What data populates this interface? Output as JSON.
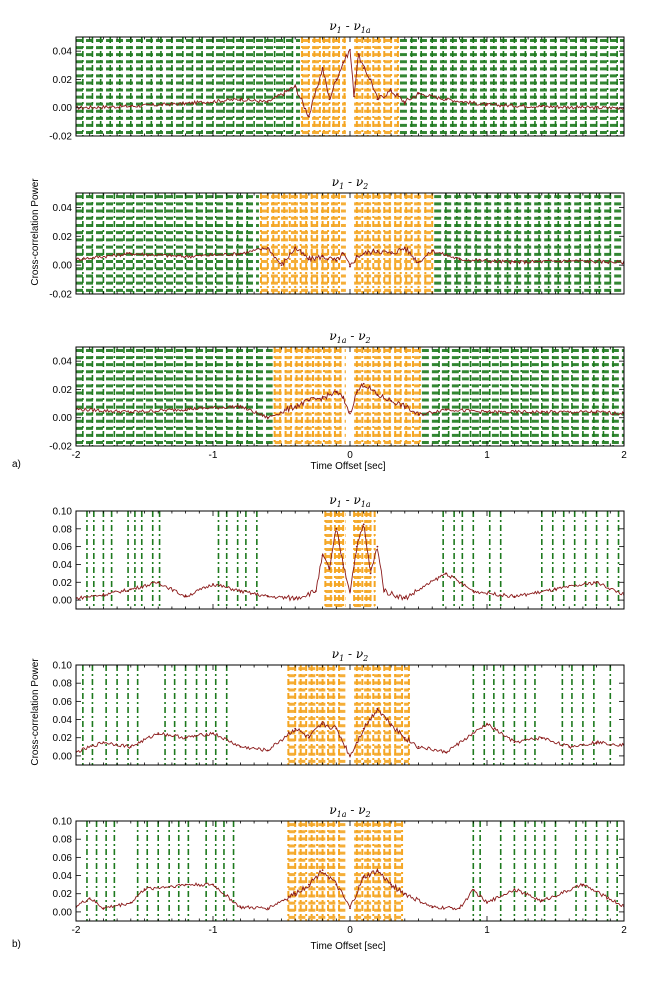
{
  "figure": {
    "x_axis_label": "Time Offset [sec]",
    "y_axis_label": "Cross-correlation Power",
    "panel_tags": [
      "a)",
      "b)"
    ],
    "colors": {
      "trace": "#8b1a1a",
      "orange_band": "#f5a623",
      "green_band": "#1e7a1e",
      "axes": "#000000"
    }
  },
  "chart_data": [
    {
      "type": "line",
      "group": "a",
      "title": "ν1 - ν1a",
      "title_parts": [
        "ν",
        "1",
        " - ν",
        "1a"
      ],
      "xlim": [
        -2,
        2
      ],
      "ylim": [
        -0.02,
        0.05
      ],
      "xticks": [
        -2,
        -1,
        0,
        1,
        2
      ],
      "yticks": [
        -0.02,
        0.0,
        0.02,
        0.04
      ],
      "ytick_labels": [
        "-0.02",
        "0.00",
        "0.02",
        "0.04"
      ],
      "xtick_labels": [],
      "x": [
        -2.0,
        -1.6,
        -1.2,
        -0.8,
        -0.6,
        -0.4,
        -0.3,
        -0.2,
        -0.15,
        -0.1,
        -0.05,
        0.0,
        0.03,
        0.06,
        0.1,
        0.15,
        0.2,
        0.3,
        0.4,
        0.5,
        0.7,
        1.0,
        1.4,
        1.8,
        2.0
      ],
      "values": [
        0.0,
        0.001,
        0.003,
        0.006,
        0.004,
        0.015,
        -0.006,
        0.028,
        0.006,
        0.02,
        0.032,
        0.041,
        0.008,
        0.038,
        0.028,
        0.02,
        0.006,
        0.012,
        0.004,
        0.01,
        0.006,
        0.002,
        0.001,
        0.0,
        0.0
      ],
      "orange_bands": [
        -0.35,
        -0.3,
        -0.26,
        -0.22,
        -0.19,
        -0.15,
        -0.12,
        -0.08,
        -0.04,
        0.05,
        0.09,
        0.13,
        0.17,
        0.21,
        0.25,
        0.3,
        0.35
      ],
      "green_bands": [
        -1.95,
        -1.88,
        -1.82,
        -1.75,
        -1.68,
        -1.6,
        -1.52,
        -1.45,
        -1.38,
        -1.3,
        -1.22,
        -1.15,
        -1.08,
        -1.0,
        -0.92,
        -0.85,
        -0.78,
        -0.7,
        -0.62,
        -0.55,
        -0.48,
        -0.42,
        0.45,
        0.52,
        0.6,
        0.68,
        0.75,
        0.82,
        0.9,
        0.98,
        1.05,
        1.12,
        1.2,
        1.28,
        1.35,
        1.42,
        1.5,
        1.58,
        1.65,
        1.72,
        1.8,
        1.88,
        1.95
      ],
      "orange_hbands": true,
      "green_hbands": true
    },
    {
      "type": "line",
      "group": "a",
      "title": "ν1 - ν2",
      "title_parts": [
        "ν",
        "1",
        " - ν",
        "2"
      ],
      "xlim": [
        -2,
        2
      ],
      "ylim": [
        -0.02,
        0.05
      ],
      "xticks": [
        -2,
        -1,
        0,
        1,
        2
      ],
      "yticks": [
        -0.02,
        0.0,
        0.02,
        0.04
      ],
      "ytick_labels": [
        "-0.02",
        "0.00",
        "0.02",
        "0.04"
      ],
      "xtick_labels": [],
      "x": [
        -2.0,
        -1.6,
        -1.2,
        -0.8,
        -0.6,
        -0.5,
        -0.4,
        -0.3,
        -0.2,
        -0.1,
        -0.05,
        0.0,
        0.05,
        0.1,
        0.2,
        0.3,
        0.4,
        0.5,
        0.6,
        0.8,
        1.2,
        1.6,
        2.0
      ],
      "values": [
        0.004,
        0.008,
        0.006,
        0.008,
        0.012,
        0.0,
        0.012,
        0.004,
        0.006,
        0.003,
        0.008,
        -0.001,
        0.006,
        0.008,
        0.01,
        0.008,
        0.012,
        0.002,
        0.01,
        0.004,
        0.002,
        0.003,
        0.002
      ],
      "orange_bands": [
        -0.65,
        -0.6,
        -0.56,
        -0.52,
        -0.48,
        -0.44,
        -0.4,
        -0.36,
        -0.32,
        -0.28,
        -0.24,
        -0.2,
        -0.16,
        -0.12,
        -0.08,
        0.05,
        0.09,
        0.13,
        0.17,
        0.21,
        0.25,
        0.29,
        0.33,
        0.37,
        0.41,
        0.45,
        0.5,
        0.55,
        0.6
      ],
      "green_bands": [
        -1.95,
        -1.88,
        -1.8,
        -1.72,
        -1.65,
        -1.58,
        -1.5,
        -1.42,
        -1.35,
        -1.28,
        -1.2,
        -1.12,
        -1.05,
        -0.98,
        -0.9,
        -0.82,
        -0.75,
        0.7,
        0.78,
        0.85,
        0.92,
        1.0,
        1.08,
        1.15,
        1.22,
        1.3,
        1.38,
        1.45,
        1.52,
        1.6,
        1.68,
        1.75,
        1.82,
        1.9
      ],
      "orange_hbands": true,
      "green_hbands": true
    },
    {
      "type": "line",
      "group": "a",
      "title": "ν1a - ν2",
      "title_parts": [
        "ν",
        "1a",
        " - ν",
        "2"
      ],
      "xlim": [
        -2,
        2
      ],
      "ylim": [
        -0.02,
        0.05
      ],
      "xticks": [
        -2,
        -1,
        0,
        1,
        2
      ],
      "yticks": [
        -0.02,
        0.0,
        0.02,
        0.04
      ],
      "ytick_labels": [
        "-0.02",
        "0.00",
        "0.02",
        "0.04"
      ],
      "xtick_labels": [
        "-2",
        "-1",
        "0",
        "1",
        "2"
      ],
      "x": [
        -2.0,
        -1.6,
        -1.2,
        -0.8,
        -0.6,
        -0.4,
        -0.3,
        -0.2,
        -0.1,
        -0.05,
        0.0,
        0.05,
        0.1,
        0.2,
        0.3,
        0.4,
        0.5,
        0.7,
        1.0,
        1.4,
        1.8,
        2.0
      ],
      "values": [
        0.006,
        0.004,
        0.006,
        0.008,
        0.0,
        0.008,
        0.012,
        0.014,
        0.018,
        0.014,
        0.003,
        0.018,
        0.024,
        0.016,
        0.012,
        0.008,
        0.002,
        0.006,
        0.004,
        0.004,
        0.004,
        0.003
      ],
      "orange_bands": [
        -0.55,
        -0.51,
        -0.47,
        -0.43,
        -0.39,
        -0.35,
        -0.31,
        -0.27,
        -0.23,
        -0.19,
        -0.15,
        -0.11,
        -0.07,
        0.05,
        0.09,
        0.13,
        0.17,
        0.21,
        0.25,
        0.29,
        0.33,
        0.37,
        0.41,
        0.46,
        0.51
      ],
      "green_bands": [
        -1.95,
        -1.88,
        -1.8,
        -1.72,
        -1.65,
        -1.58,
        -1.5,
        -1.42,
        -1.35,
        -1.28,
        -1.2,
        -1.12,
        -1.05,
        -0.98,
        -0.9,
        -0.82,
        -0.75,
        -0.68,
        0.65,
        0.72,
        0.8,
        0.88,
        0.95,
        1.02,
        1.1,
        1.18,
        1.25,
        1.32,
        1.4,
        1.48,
        1.55,
        1.62,
        1.7,
        1.78,
        1.85,
        1.92
      ],
      "orange_hbands": true,
      "green_hbands": true
    },
    {
      "type": "line",
      "group": "b",
      "title": "ν1 - ν1a",
      "title_parts": [
        "ν",
        "1",
        " - ν",
        "1a"
      ],
      "xlim": [
        -2,
        2
      ],
      "ylim": [
        -0.01,
        0.1
      ],
      "xticks": [
        -2,
        -1,
        0,
        1,
        2
      ],
      "yticks": [
        0.0,
        0.02,
        0.04,
        0.06,
        0.08,
        0.1
      ],
      "ytick_labels": [
        "0.00",
        "0.02",
        "0.04",
        "0.06",
        "0.08",
        "0.10"
      ],
      "xtick_labels": [],
      "x": [
        -2.0,
        -1.8,
        -1.6,
        -1.4,
        -1.2,
        -1.0,
        -0.8,
        -0.6,
        -0.4,
        -0.25,
        -0.2,
        -0.15,
        -0.1,
        -0.05,
        0.0,
        0.05,
        0.1,
        0.15,
        0.2,
        0.25,
        0.4,
        0.7,
        0.9,
        1.2,
        1.5,
        1.8,
        2.0
      ],
      "values": [
        0.002,
        0.006,
        0.012,
        0.02,
        0.004,
        0.018,
        0.01,
        0.004,
        0.002,
        0.01,
        0.05,
        0.035,
        0.08,
        0.04,
        0.01,
        0.06,
        0.085,
        0.03,
        0.06,
        0.01,
        0.002,
        0.03,
        0.01,
        0.004,
        0.012,
        0.02,
        0.006
      ],
      "orange_bands": [
        -0.18,
        -0.14,
        -0.11,
        -0.08,
        -0.05,
        0.03,
        0.06,
        0.09,
        0.12,
        0.15,
        0.18
      ],
      "green_bands": [
        -1.92,
        -1.87,
        -1.8,
        -1.74,
        -1.62,
        -1.57,
        -1.52,
        -1.44,
        -1.39,
        -0.96,
        -0.9,
        -0.82,
        -0.76,
        -0.68,
        0.68,
        0.76,
        0.82,
        0.9,
        1.02,
        1.1,
        1.4,
        1.48,
        1.56,
        1.64,
        1.72,
        1.8,
        1.88,
        1.96
      ],
      "orange_hbands": true,
      "green_hbands": false
    },
    {
      "type": "line",
      "group": "b",
      "title": "ν1 - ν2",
      "title_parts": [
        "ν",
        "1",
        " - ν",
        "2"
      ],
      "xlim": [
        -2,
        2
      ],
      "ylim": [
        -0.01,
        0.1
      ],
      "xticks": [
        -2,
        -1,
        0,
        1,
        2
      ],
      "yticks": [
        0.0,
        0.02,
        0.04,
        0.06,
        0.08,
        0.1
      ],
      "ytick_labels": [
        "0.00",
        "0.02",
        "0.04",
        "0.06",
        "0.08",
        "0.10"
      ],
      "xtick_labels": [],
      "x": [
        -2.0,
        -1.8,
        -1.6,
        -1.4,
        -1.2,
        -1.0,
        -0.8,
        -0.6,
        -0.4,
        -0.3,
        -0.2,
        -0.1,
        0.0,
        0.1,
        0.2,
        0.3,
        0.4,
        0.5,
        0.7,
        1.0,
        1.2,
        1.4,
        1.6,
        1.8,
        2.0
      ],
      "values": [
        0.004,
        0.015,
        0.01,
        0.025,
        0.02,
        0.025,
        0.01,
        0.006,
        0.03,
        0.02,
        0.035,
        0.03,
        0.0,
        0.03,
        0.052,
        0.035,
        0.02,
        0.01,
        0.004,
        0.035,
        0.015,
        0.02,
        0.01,
        0.015,
        0.012
      ],
      "orange_bands": [
        -0.45,
        -0.4,
        -0.36,
        -0.32,
        -0.28,
        -0.24,
        -0.2,
        -0.16,
        -0.12,
        -0.08,
        0.05,
        0.09,
        0.13,
        0.17,
        0.21,
        0.25,
        0.29,
        0.33,
        0.38,
        0.43
      ],
      "green_bands": [
        -1.95,
        -1.88,
        -1.78,
        -1.7,
        -1.62,
        -1.55,
        -1.35,
        -1.28,
        -1.2,
        -1.12,
        -1.05,
        -0.98,
        -0.9,
        0.9,
        0.98,
        1.05,
        1.12,
        1.2,
        1.28,
        1.35,
        1.55,
        1.62,
        1.7,
        1.78,
        1.9
      ],
      "orange_hbands": true,
      "green_hbands": false
    },
    {
      "type": "line",
      "group": "b",
      "title": "ν1a - ν2",
      "title_parts": [
        "ν",
        "1a",
        " - ν",
        "2"
      ],
      "xlim": [
        -2,
        2
      ],
      "ylim": [
        -0.01,
        0.1
      ],
      "xticks": [
        -2,
        -1,
        0,
        1,
        2
      ],
      "yticks": [
        0.0,
        0.02,
        0.04,
        0.06,
        0.08,
        0.1
      ],
      "ytick_labels": [
        "0.00",
        "0.02",
        "0.04",
        "0.06",
        "0.08",
        "0.10"
      ],
      "xtick_labels": [
        "-2",
        "-1",
        "0",
        "1",
        "2"
      ],
      "x": [
        -2.0,
        -1.9,
        -1.8,
        -1.6,
        -1.5,
        -1.2,
        -1.0,
        -0.8,
        -0.6,
        -0.4,
        -0.3,
        -0.2,
        -0.1,
        0.0,
        0.1,
        0.2,
        0.3,
        0.4,
        0.6,
        0.8,
        0.9,
        1.0,
        1.2,
        1.4,
        1.7,
        2.0
      ],
      "values": [
        0.006,
        0.015,
        0.004,
        0.01,
        0.025,
        0.03,
        0.03,
        0.005,
        0.004,
        0.02,
        0.03,
        0.046,
        0.03,
        0.004,
        0.038,
        0.045,
        0.03,
        0.02,
        0.005,
        0.004,
        0.024,
        0.01,
        0.025,
        0.012,
        0.03,
        0.006
      ],
      "orange_bands": [
        -0.45,
        -0.4,
        -0.36,
        -0.32,
        -0.28,
        -0.24,
        -0.2,
        -0.16,
        -0.12,
        -0.08,
        0.05,
        0.09,
        0.13,
        0.17,
        0.21,
        0.25,
        0.29,
        0.33,
        0.38
      ],
      "green_bands": [
        -1.92,
        -1.85,
        -1.78,
        -1.72,
        -1.55,
        -1.48,
        -1.4,
        -1.32,
        -1.25,
        -1.18,
        -1.05,
        -0.98,
        -0.92,
        -0.85,
        0.9,
        0.95,
        1.1,
        1.2,
        1.28,
        1.35,
        1.42,
        1.5,
        1.65,
        1.72,
        1.8,
        1.88,
        1.95
      ],
      "orange_hbands": true,
      "green_hbands": false
    }
  ]
}
